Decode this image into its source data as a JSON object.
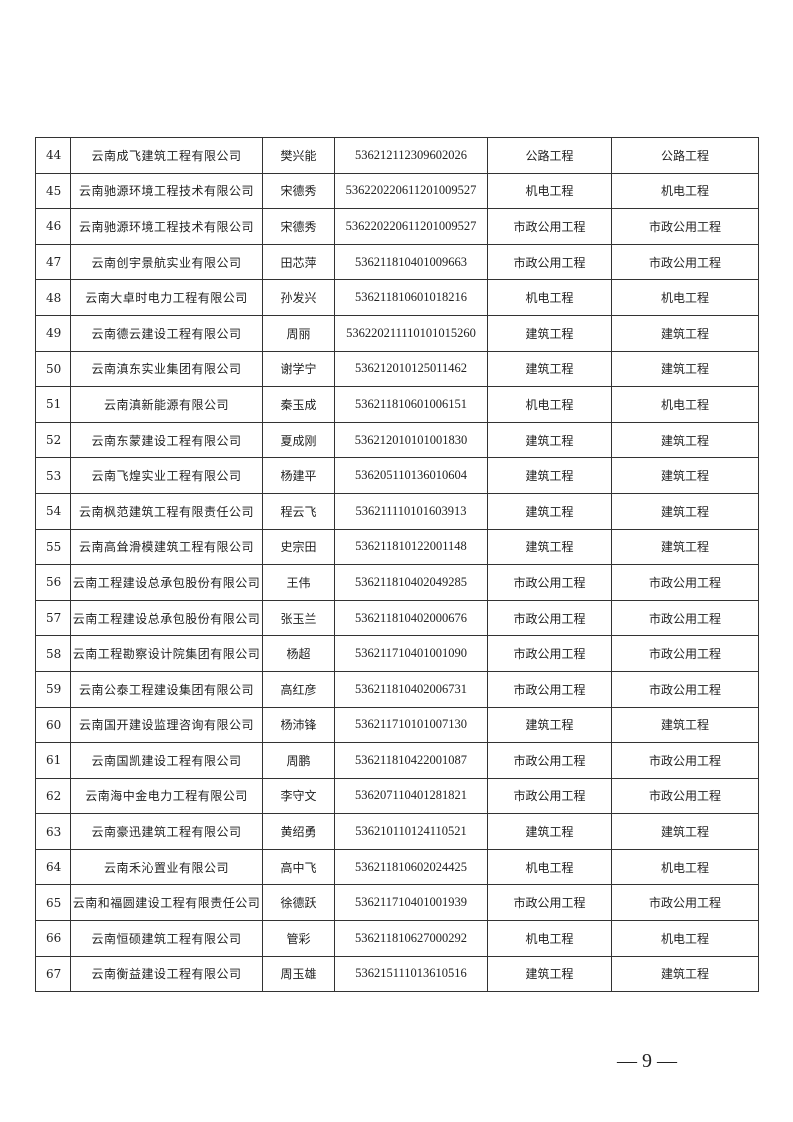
{
  "table": {
    "rows": [
      {
        "no": "44",
        "company": "云南成飞建筑工程有限公司",
        "person": "樊兴能",
        "id": "536212112309602026",
        "category": "公路工程",
        "category2": "公路工程"
      },
      {
        "no": "45",
        "company": "云南驰源环境工程技术有限公司",
        "person": "宋德秀",
        "id": "5362202206112010095 27",
        "category": "机电工程",
        "category2": "机电工程"
      },
      {
        "no": "46",
        "company": "云南驰源环境工程技术有限公司",
        "person": "宋德秀",
        "id": "536220220611201009527",
        "category": "市政公用工程",
        "category2": "市政公用工程"
      },
      {
        "no": "47",
        "company": "云南创宇景航实业有限公司",
        "person": "田芯萍",
        "id": "536211810401009663",
        "category": "市政公用工程",
        "category2": "市政公用工程"
      },
      {
        "no": "48",
        "company": "云南大卓时电力工程有限公司",
        "person": "孙发兴",
        "id": "536211810601018216",
        "category": "机电工程",
        "category2": "机电工程"
      },
      {
        "no": "49",
        "company": "云南德云建设工程有限公司",
        "person": "周丽",
        "id": "536220211110101015260",
        "category": "建筑工程",
        "category2": "建筑工程"
      },
      {
        "no": "50",
        "company": "云南滇东实业集团有限公司",
        "person": "谢学宁",
        "id": "536212010125011462",
        "category": "建筑工程",
        "category2": "建筑工程"
      },
      {
        "no": "51",
        "company": "云南滇新能源有限公司",
        "person": "秦玉成",
        "id": "536211810601006151",
        "category": "机电工程",
        "category2": "机电工程"
      },
      {
        "no": "52",
        "company": "云南东蒙建设工程有限公司",
        "person": "夏成刚",
        "id": "536212010101001830",
        "category": "建筑工程",
        "category2": "建筑工程"
      },
      {
        "no": "53",
        "company": "云南飞煌实业工程有限公司",
        "person": "杨建平",
        "id": "536205110136010604",
        "category": "建筑工程",
        "category2": "建筑工程"
      },
      {
        "no": "54",
        "company": "云南枫范建筑工程有限责任公司",
        "person": "程云飞",
        "id": "536211110101603913",
        "category": "建筑工程",
        "category2": "建筑工程"
      },
      {
        "no": "55",
        "company": "云南高耸滑模建筑工程有限公司",
        "person": "史宗田",
        "id": "536211810122001148",
        "category": "建筑工程",
        "category2": "建筑工程"
      },
      {
        "no": "56",
        "company": "云南工程建设总承包股份有限公司",
        "person": "王伟",
        "id": "536211810402049285",
        "category": "市政公用工程",
        "category2": "市政公用工程"
      },
      {
        "no": "57",
        "company": "云南工程建设总承包股份有限公司",
        "person": "张玉兰",
        "id": "536211810402000676",
        "category": "市政公用工程",
        "category2": "市政公用工程"
      },
      {
        "no": "58",
        "company": "云南工程勘察设计院集团有限公司",
        "person": "杨超",
        "id": "536211710401001090",
        "category": "市政公用工程",
        "category2": "市政公用工程"
      },
      {
        "no": "59",
        "company": "云南公泰工程建设集团有限公司",
        "person": "高红彦",
        "id": "536211810402006731",
        "category": "市政公用工程",
        "category2": "市政公用工程"
      },
      {
        "no": "60",
        "company": "云南国开建设监理咨询有限公司",
        "person": "杨沛锋",
        "id": "536211710101007130",
        "category": "建筑工程",
        "category2": "建筑工程"
      },
      {
        "no": "61",
        "company": "云南国凯建设工程有限公司",
        "person": "周鹏",
        "id": "536211810422001087",
        "category": "市政公用工程",
        "category2": "市政公用工程"
      },
      {
        "no": "62",
        "company": "云南海中金电力工程有限公司",
        "person": "李守文",
        "id": "536207110401281821",
        "category": "市政公用工程",
        "category2": "市政公用工程"
      },
      {
        "no": "63",
        "company": "云南豪迅建筑工程有限公司",
        "person": "黄绍勇",
        "id": "536210110124110521",
        "category": "建筑工程",
        "category2": "建筑工程"
      },
      {
        "no": "64",
        "company": "云南禾沁置业有限公司",
        "person": "高中飞",
        "id": "536211810602024425",
        "category": "机电工程",
        "category2": "机电工程"
      },
      {
        "no": "65",
        "company": "云南和福圆建设工程有限责任公司",
        "person": "徐德跃",
        "id": "536211710401001939",
        "category": "市政公用工程",
        "category2": "市政公用工程"
      },
      {
        "no": "66",
        "company": "云南恒硕建筑工程有限公司",
        "person": "管彩",
        "id": "536211810627000292",
        "category": "机电工程",
        "category2": "机电工程"
      },
      {
        "no": "67",
        "company": "云南衡益建设工程有限公司",
        "person": "周玉雄",
        "id": "536215111013610516",
        "category": "建筑工程",
        "category2": "建筑工程"
      }
    ]
  },
  "footer": {
    "page_number": "— 9 —"
  }
}
